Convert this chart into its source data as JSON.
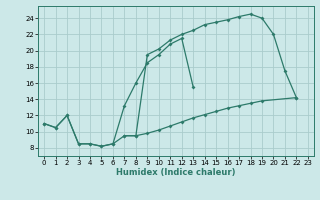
{
  "xlabel": "Humidex (Indice chaleur)",
  "ylabel": "",
  "bg_color": "#cce8e8",
  "grid_color": "#aacccc",
  "line_color": "#2d7a6a",
  "xlim": [
    -0.5,
    23.5
  ],
  "ylim": [
    7.0,
    25.5
  ],
  "yticks": [
    8,
    10,
    12,
    14,
    16,
    18,
    20,
    22,
    24
  ],
  "xticks": [
    0,
    1,
    2,
    3,
    4,
    5,
    6,
    7,
    8,
    9,
    10,
    11,
    12,
    13,
    14,
    15,
    16,
    17,
    18,
    19,
    20,
    21,
    22,
    23
  ],
  "line1_x": [
    0,
    1,
    2,
    3,
    4,
    5,
    6,
    7,
    8,
    9,
    10,
    11,
    12,
    13,
    14,
    15,
    16,
    17,
    18,
    19,
    20,
    21,
    22
  ],
  "line1_y": [
    11.0,
    10.5,
    12.0,
    8.5,
    8.5,
    8.2,
    8.5,
    9.5,
    9.5,
    19.5,
    20.2,
    21.3,
    22.0,
    22.5,
    23.2,
    23.5,
    23.8,
    24.2,
    24.5,
    24.0,
    22.0,
    17.5,
    14.2
  ],
  "line2_x": [
    0,
    1,
    2,
    3,
    4,
    5,
    6,
    7,
    8,
    9,
    10,
    11,
    12,
    13
  ],
  "line2_y": [
    11.0,
    10.5,
    12.0,
    8.5,
    8.5,
    8.2,
    8.5,
    13.2,
    16.0,
    18.5,
    19.5,
    20.8,
    21.5,
    15.5
  ],
  "line3_x": [
    7,
    8,
    9,
    10,
    11,
    12,
    13,
    14,
    15,
    16,
    17,
    18,
    19,
    22
  ],
  "line3_y": [
    9.5,
    9.5,
    9.8,
    10.2,
    10.7,
    11.2,
    11.7,
    12.1,
    12.5,
    12.9,
    13.2,
    13.5,
    13.8,
    14.2
  ]
}
